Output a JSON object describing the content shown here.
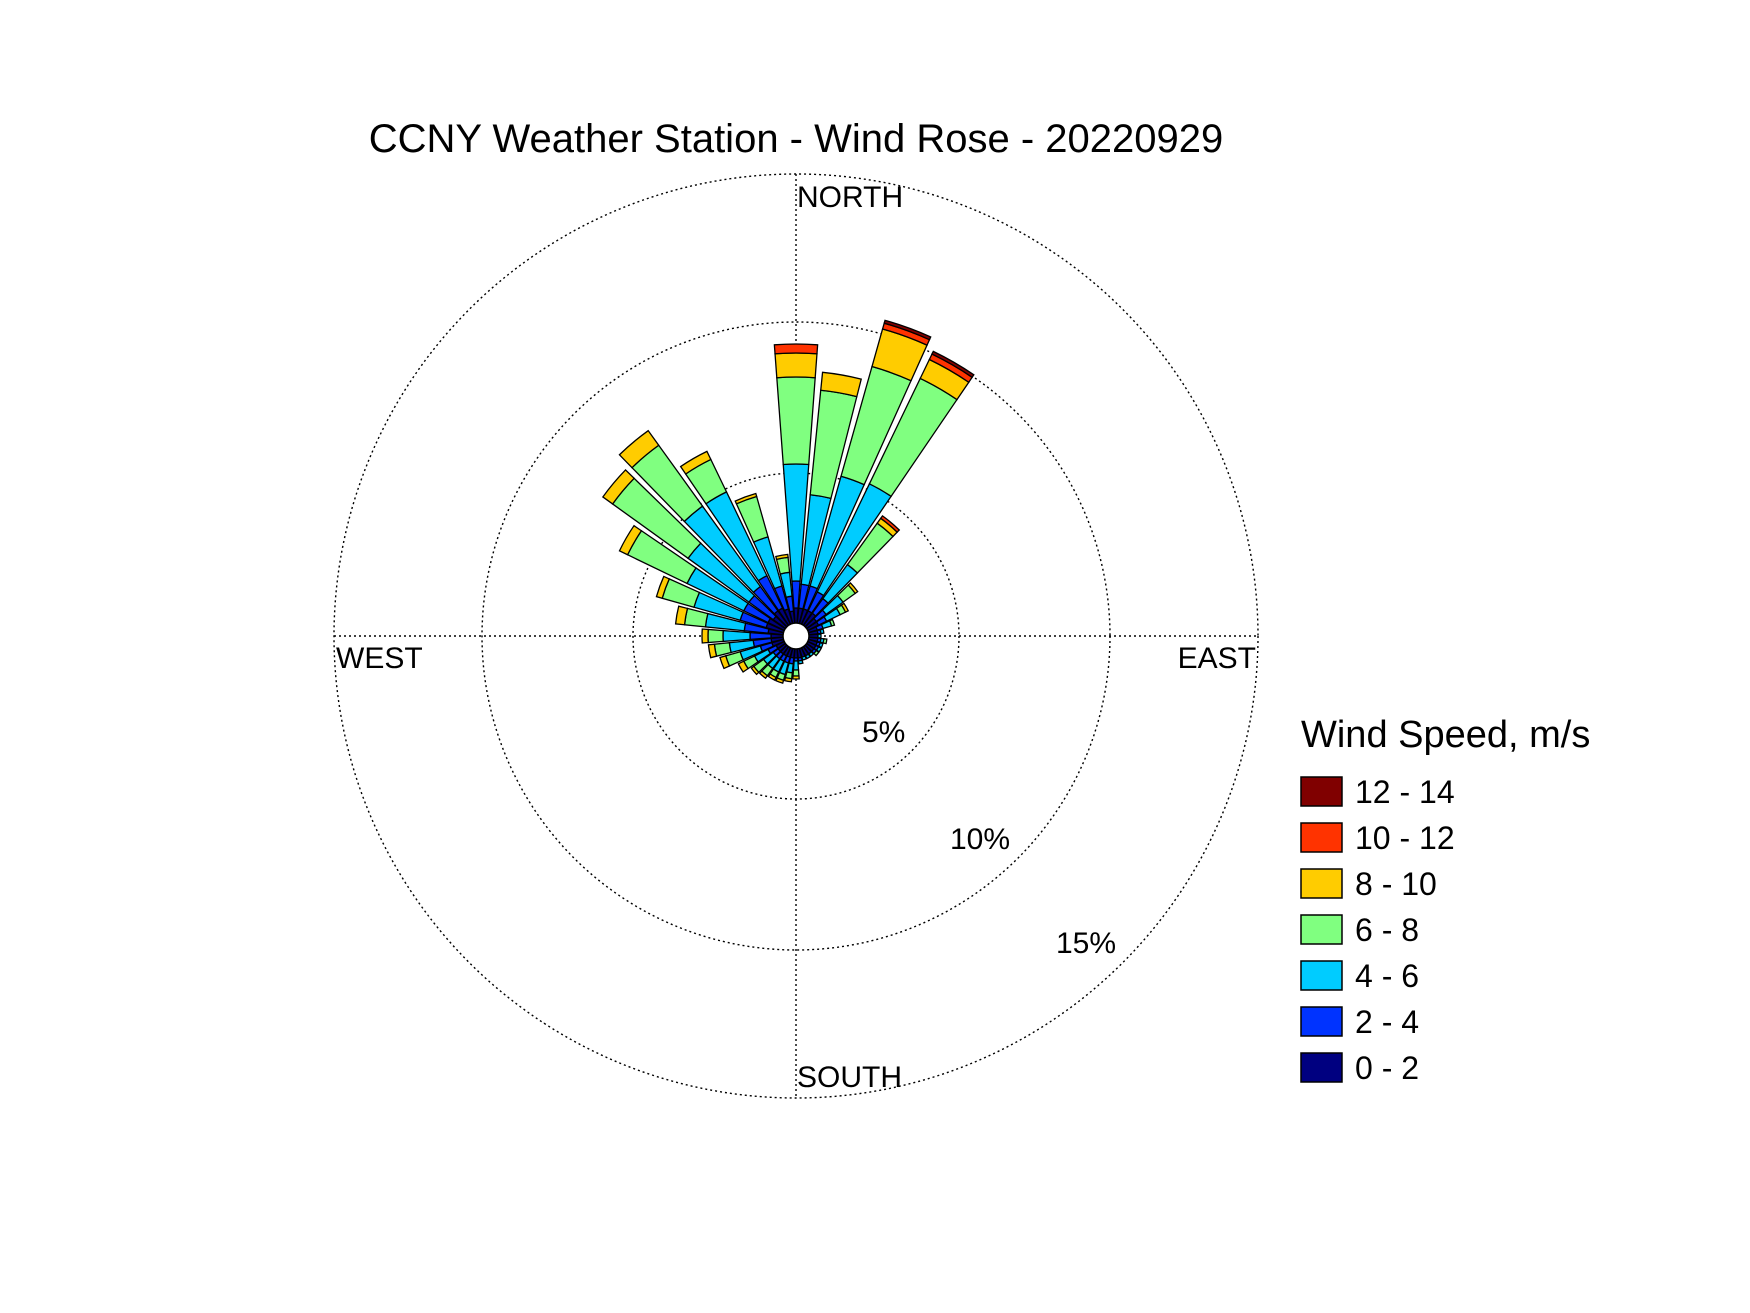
{
  "chart_data": {
    "type": "wind-rose",
    "title": "CCNY Weather Station - Wind Rose - 20220929",
    "directions_label": {
      "north": "NORTH",
      "east": "EAST",
      "south": "SOUTH",
      "west": "WEST"
    },
    "ring_labels": [
      "5%",
      "10%",
      "15%"
    ],
    "rings_percent": [
      5,
      10,
      15
    ],
    "legend": {
      "title": "Wind Speed, m/s",
      "placement": "right",
      "entries": [
        {
          "label": "12 - 14",
          "color": "#800000"
        },
        {
          "label": "10 - 12",
          "color": "#ff3300"
        },
        {
          "label": "8 - 10",
          "color": "#ffcc00"
        },
        {
          "label": "6 - 8",
          "color": "#80ff80"
        },
        {
          "label": "4 - 6",
          "color": "#00ccff"
        },
        {
          "label": "2 - 4",
          "color": "#0033ff"
        },
        {
          "label": "0 - 2",
          "color": "#000080"
        }
      ]
    },
    "speed_bins": [
      "0 - 2",
      "2 - 4",
      "4 - 6",
      "6 - 8",
      "8 - 10",
      "10 - 12",
      "12 - 14"
    ],
    "bin_colors": [
      "#000080",
      "#0033ff",
      "#00ccff",
      "#80ff80",
      "#ffcc00",
      "#ff3300",
      "#800000"
    ],
    "sector_width_deg": 10,
    "sectors": [
      {
        "direction_deg": 0,
        "cumulative_percent": [
          0.5,
          1.4,
          5.3,
          8.2,
          9.0,
          9.3,
          9.3
        ]
      },
      {
        "direction_deg": 10,
        "cumulative_percent": [
          0.5,
          1.3,
          4.3,
          7.8,
          8.4,
          8.4,
          8.4
        ]
      },
      {
        "direction_deg": 20,
        "cumulative_percent": [
          0.5,
          1.3,
          5.1,
          8.9,
          10.2,
          10.4,
          10.5
        ]
      },
      {
        "direction_deg": 30,
        "cumulative_percent": [
          0.5,
          1.2,
          5.2,
          9.1,
          9.8,
          10.0,
          10.1
        ]
      },
      {
        "direction_deg": 40,
        "cumulative_percent": [
          0.5,
          1.1,
          2.5,
          4.2,
          4.4,
          4.5,
          4.5
        ]
      },
      {
        "direction_deg": 50,
        "cumulative_percent": [
          0.4,
          0.8,
          1.5,
          2.0,
          2.1,
          2.1,
          2.1
        ]
      },
      {
        "direction_deg": 60,
        "cumulative_percent": [
          0.4,
          0.7,
          1.2,
          1.4,
          1.5,
          1.5,
          1.5
        ]
      },
      {
        "direction_deg": 70,
        "cumulative_percent": [
          0.3,
          0.5,
          0.8,
          0.9,
          0.9,
          0.9,
          0.9
        ]
      },
      {
        "direction_deg": 80,
        "cumulative_percent": [
          0.3,
          0.4,
          0.5,
          0.5,
          0.5,
          0.5,
          0.5
        ]
      },
      {
        "direction_deg": 90,
        "cumulative_percent": [
          0.3,
          0.3,
          0.4,
          0.4,
          0.4,
          0.4,
          0.4
        ]
      },
      {
        "direction_deg": 100,
        "cumulative_percent": [
          0.3,
          0.4,
          0.5,
          0.6,
          0.6,
          0.6,
          0.6
        ]
      },
      {
        "direction_deg": 110,
        "cumulative_percent": [
          0.3,
          0.4,
          0.5,
          0.5,
          0.5,
          0.5,
          0.5
        ]
      },
      {
        "direction_deg": 120,
        "cumulative_percent": [
          0.3,
          0.4,
          0.5,
          0.5,
          0.5,
          0.5,
          0.5
        ]
      },
      {
        "direction_deg": 130,
        "cumulative_percent": [
          0.3,
          0.4,
          0.4,
          0.5,
          0.5,
          0.5,
          0.5
        ]
      },
      {
        "direction_deg": 140,
        "cumulative_percent": [
          0.3,
          0.3,
          0.4,
          0.4,
          0.4,
          0.4,
          0.4
        ]
      },
      {
        "direction_deg": 150,
        "cumulative_percent": [
          0.3,
          0.3,
          0.4,
          0.4,
          0.4,
          0.4,
          0.4
        ]
      },
      {
        "direction_deg": 160,
        "cumulative_percent": [
          0.3,
          0.3,
          0.4,
          0.4,
          0.4,
          0.4,
          0.4
        ]
      },
      {
        "direction_deg": 170,
        "cumulative_percent": [
          0.3,
          0.4,
          0.5,
          0.5,
          0.5,
          0.5,
          0.5
        ]
      },
      {
        "direction_deg": 180,
        "cumulative_percent": [
          0.3,
          0.4,
          0.7,
          0.9,
          1.0,
          1.0,
          1.0
        ]
      },
      {
        "direction_deg": 190,
        "cumulative_percent": [
          0.3,
          0.5,
          0.8,
          1.0,
          1.1,
          1.1,
          1.1
        ]
      },
      {
        "direction_deg": 200,
        "cumulative_percent": [
          0.3,
          0.5,
          0.9,
          1.1,
          1.2,
          1.2,
          1.2
        ]
      },
      {
        "direction_deg": 210,
        "cumulative_percent": [
          0.3,
          0.5,
          0.9,
          1.1,
          1.2,
          1.2,
          1.2
        ]
      },
      {
        "direction_deg": 220,
        "cumulative_percent": [
          0.3,
          0.5,
          0.9,
          1.2,
          1.3,
          1.3,
          1.3
        ]
      },
      {
        "direction_deg": 230,
        "cumulative_percent": [
          0.3,
          0.5,
          0.9,
          1.3,
          1.4,
          1.4,
          1.4
        ]
      },
      {
        "direction_deg": 240,
        "cumulative_percent": [
          0.3,
          0.6,
          1.1,
          1.5,
          1.7,
          1.7,
          1.7
        ]
      },
      {
        "direction_deg": 250,
        "cumulative_percent": [
          0.4,
          0.8,
          1.5,
          2.0,
          2.2,
          2.2,
          2.2
        ]
      },
      {
        "direction_deg": 260,
        "cumulative_percent": [
          0.4,
          1.0,
          1.8,
          2.3,
          2.5,
          2.5,
          2.5
        ]
      },
      {
        "direction_deg": 270,
        "cumulative_percent": [
          0.4,
          1.1,
          2.0,
          2.5,
          2.7,
          2.7,
          2.7
        ]
      },
      {
        "direction_deg": 280,
        "cumulative_percent": [
          0.5,
          1.3,
          2.6,
          3.3,
          3.6,
          3.6,
          3.6
        ]
      },
      {
        "direction_deg": 290,
        "cumulative_percent": [
          0.6,
          1.5,
          3.1,
          4.2,
          4.4,
          4.4,
          4.4
        ]
      },
      {
        "direction_deg": 300,
        "cumulative_percent": [
          0.6,
          1.5,
          3.6,
          5.8,
          6.1,
          6.1,
          6.1
        ]
      },
      {
        "direction_deg": 310,
        "cumulative_percent": [
          0.5,
          1.5,
          4.0,
          7.1,
          7.5,
          7.5,
          7.5
        ]
      },
      {
        "direction_deg": 320,
        "cumulative_percent": [
          0.6,
          1.6,
          4.9,
          7.4,
          8.0,
          8.0,
          8.0
        ]
      },
      {
        "direction_deg": 330,
        "cumulative_percent": [
          0.6,
          1.8,
          4.9,
          6.1,
          6.4,
          6.4,
          6.4
        ]
      },
      {
        "direction_deg": 340,
        "cumulative_percent": [
          0.5,
          1.3,
          3.0,
          4.4,
          4.5,
          4.5,
          4.5
        ]
      },
      {
        "direction_deg": 350,
        "cumulative_percent": [
          0.4,
          0.9,
          1.7,
          2.2,
          2.3,
          2.3,
          2.3
        ]
      }
    ]
  }
}
